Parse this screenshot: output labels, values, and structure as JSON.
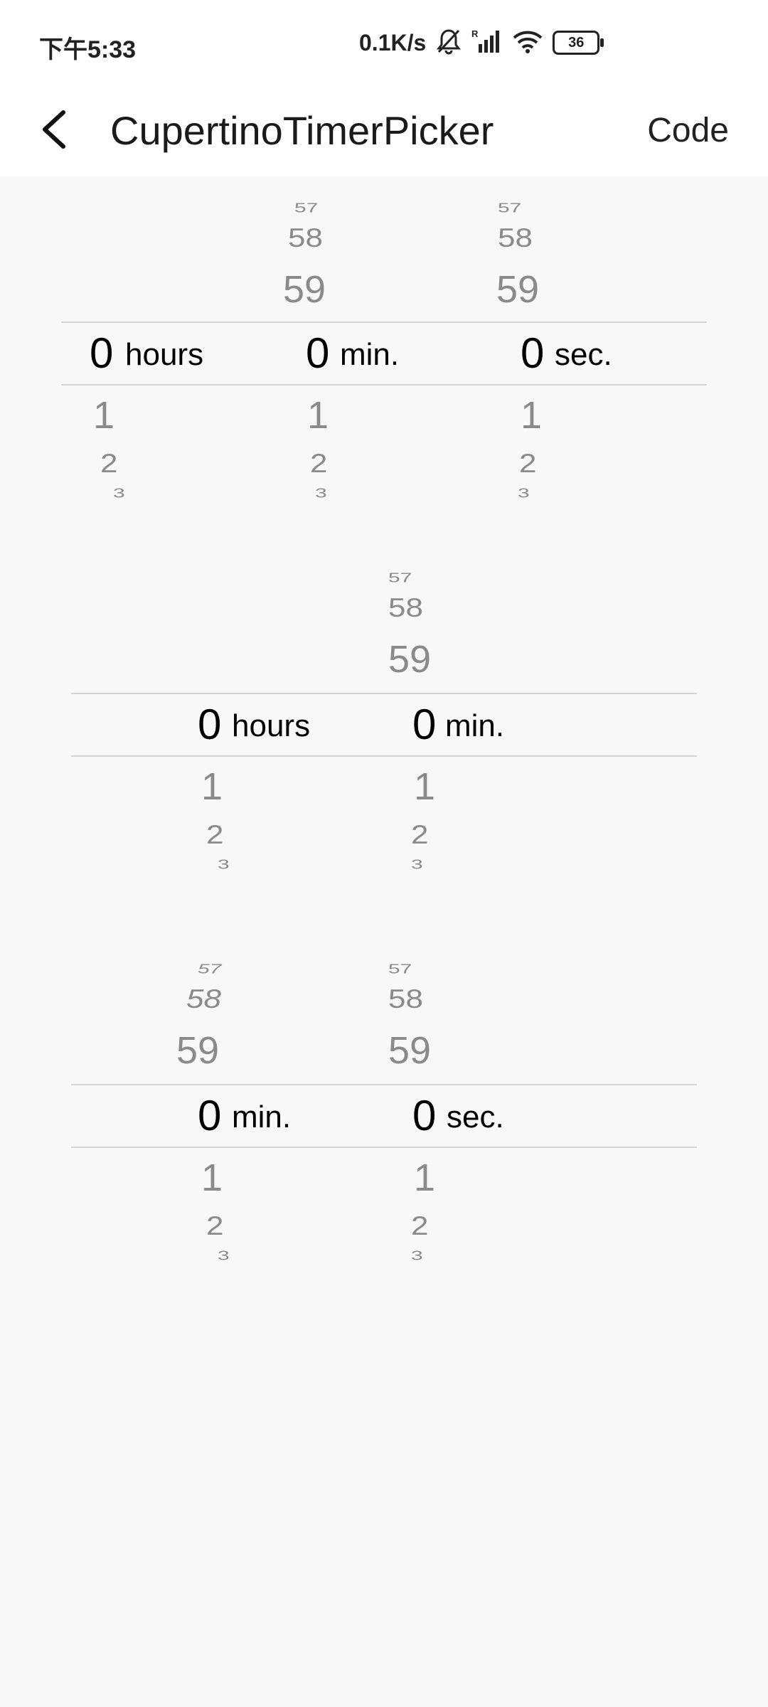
{
  "status_bar": {
    "time": "下午5:33",
    "net_speed": "0.1K/s",
    "battery": "36",
    "icons": [
      "bell-mute-icon",
      "signal-icon",
      "wifi-icon",
      "battery-icon"
    ]
  },
  "app_bar": {
    "back_icon": "chevron-left-icon",
    "title": "CupertinoTimerPicker",
    "action": "Code"
  },
  "pickers": [
    {
      "mode": "hms",
      "columns": [
        {
          "above": [
            "",
            "",
            "59"
          ],
          "selected": "0",
          "unit": "hours",
          "below": [
            "1",
            "2",
            "3"
          ]
        },
        {
          "above": [
            "57",
            "58",
            "59"
          ],
          "selected": "0",
          "unit": "min.",
          "below": [
            "1",
            "2",
            "3"
          ]
        },
        {
          "above": [
            "57",
            "58",
            "59"
          ],
          "selected": "0",
          "unit": "sec.",
          "below": [
            "1",
            "2",
            "3"
          ]
        }
      ]
    },
    {
      "mode": "hm",
      "columns": [
        {
          "above": [
            "",
            "",
            ""
          ],
          "selected": "0",
          "unit": "hours",
          "below": [
            "1",
            "2",
            "3"
          ]
        },
        {
          "above": [
            "57",
            "58",
            "59"
          ],
          "selected": "0",
          "unit": "min.",
          "below": [
            "1",
            "2",
            "3"
          ]
        }
      ]
    },
    {
      "mode": "ms",
      "columns": [
        {
          "above": [
            "57",
            "58",
            "59"
          ],
          "selected": "0",
          "unit": "min.",
          "below": [
            "1",
            "2",
            "3"
          ]
        },
        {
          "above": [
            "57",
            "58",
            "59"
          ],
          "selected": "0",
          "unit": "sec.",
          "below": [
            "1",
            "2",
            "3"
          ]
        }
      ]
    }
  ]
}
